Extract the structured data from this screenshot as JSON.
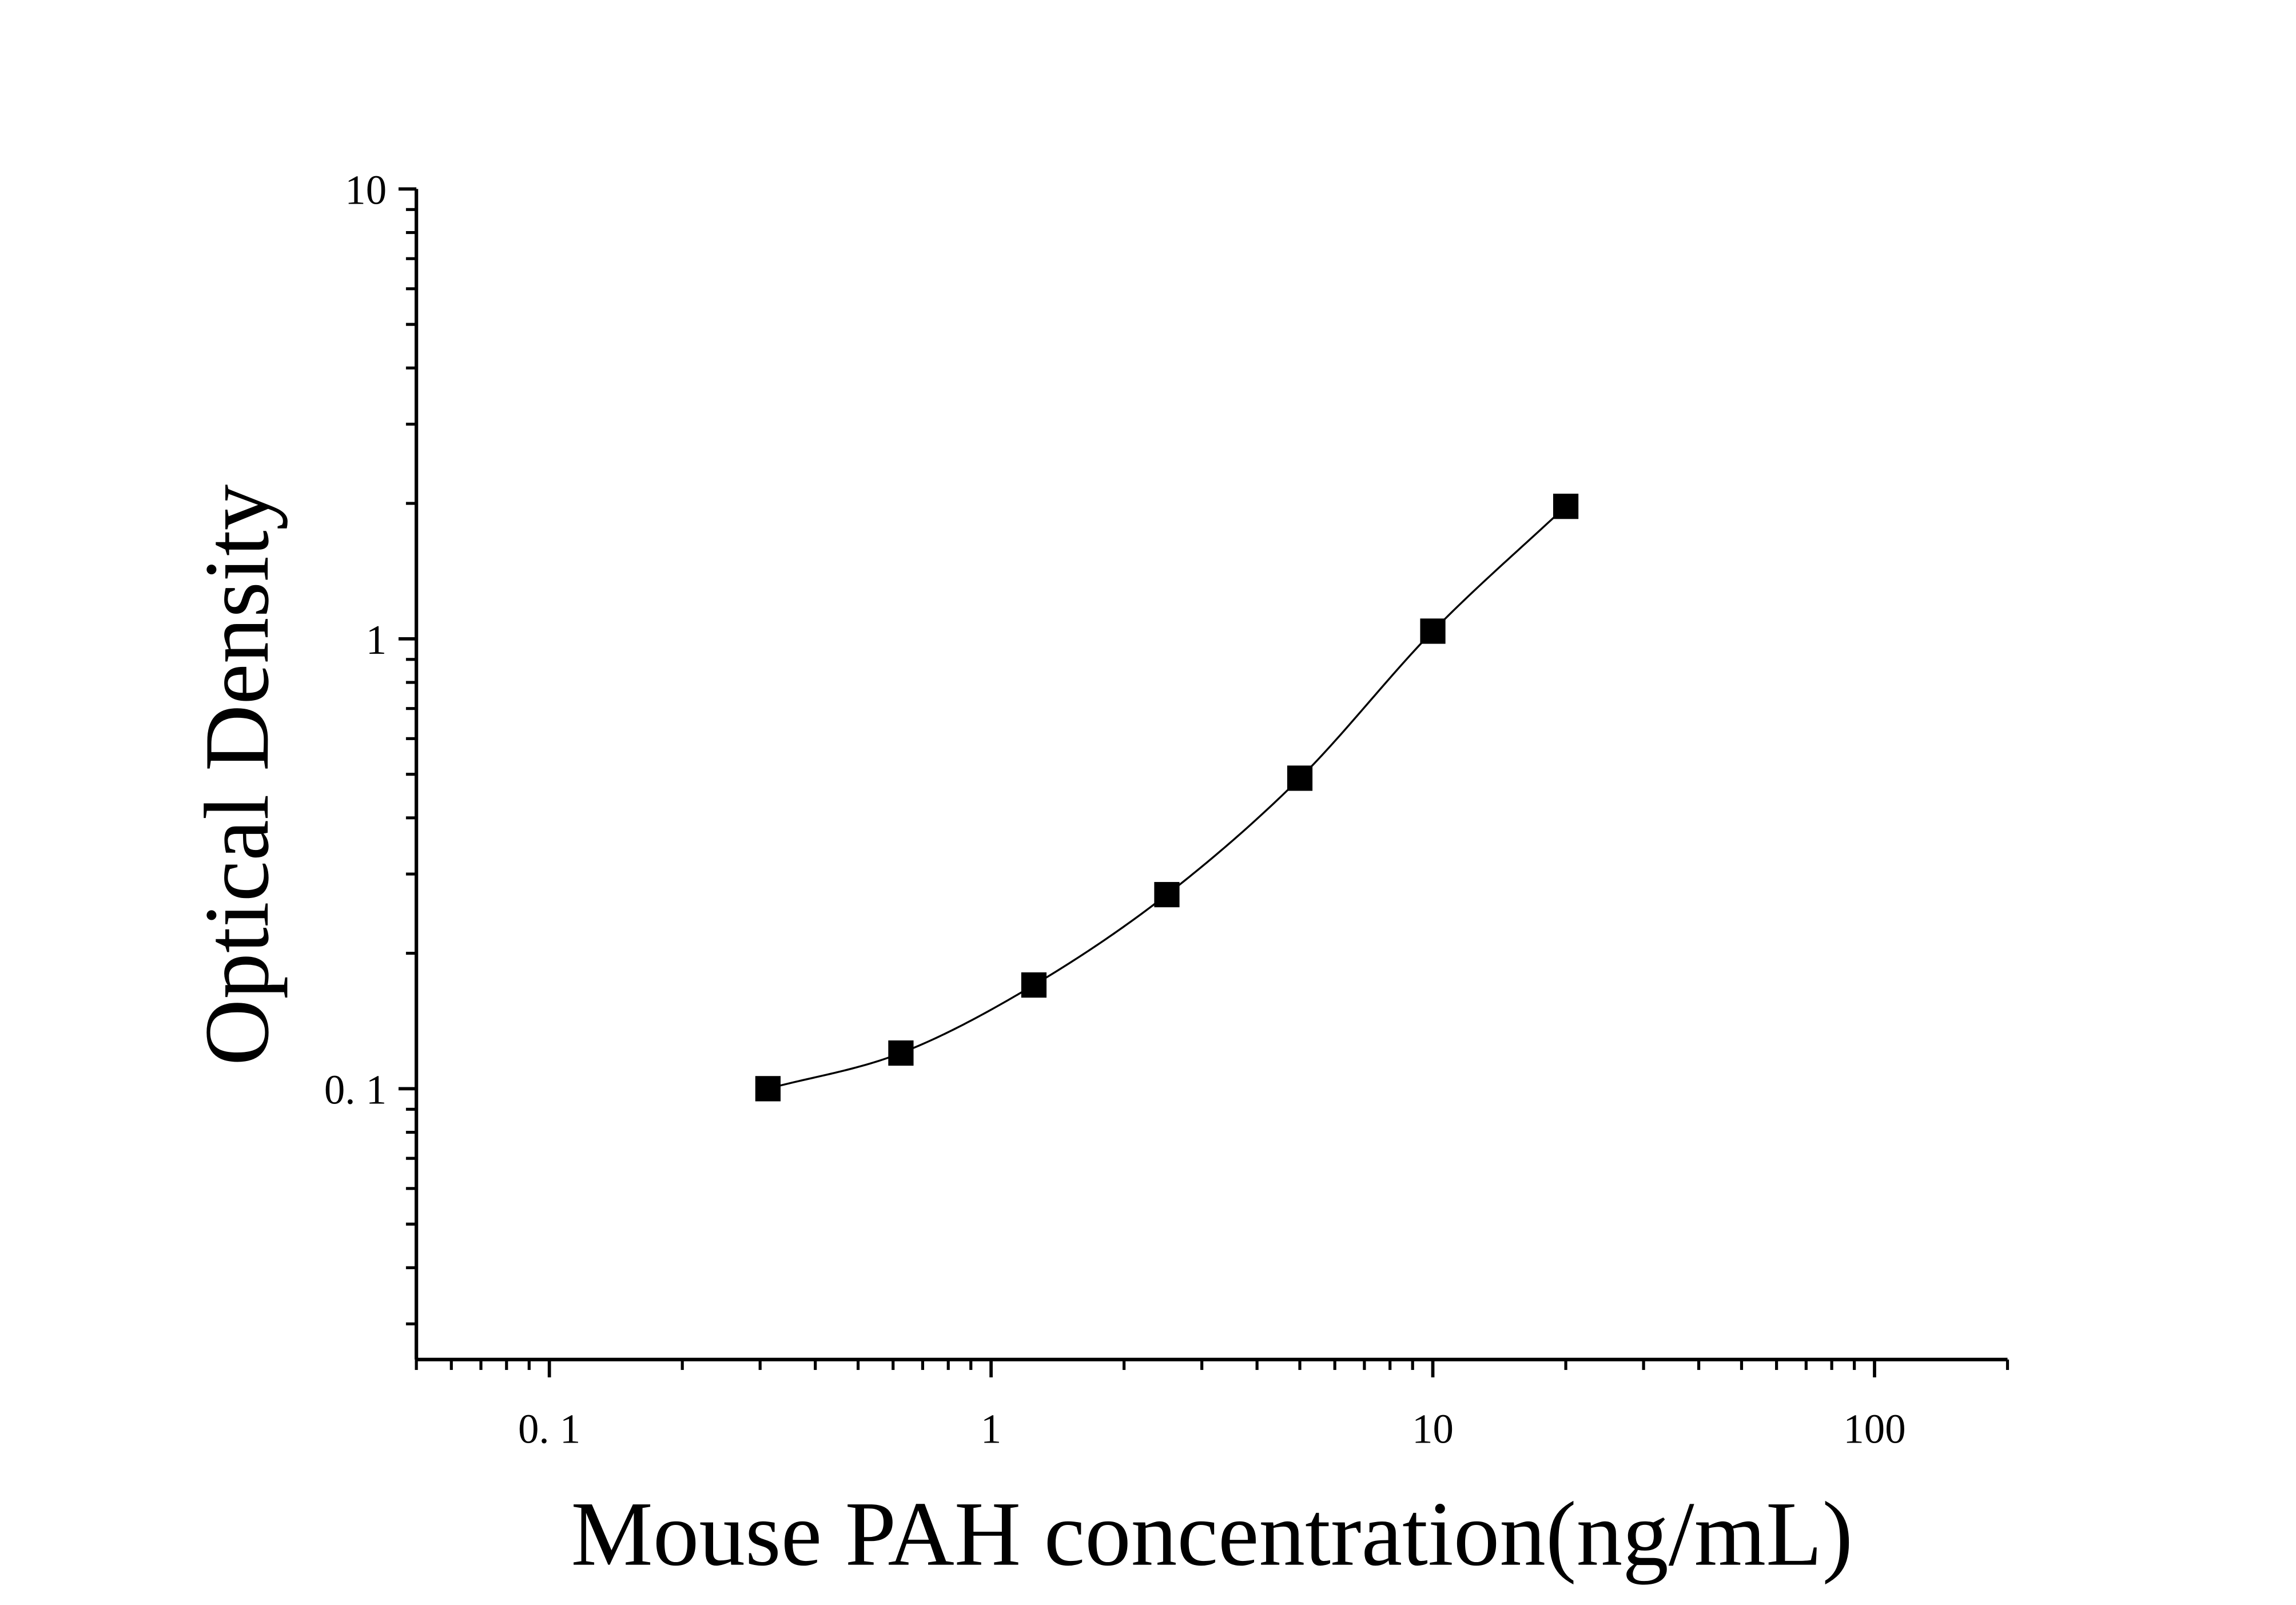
{
  "chart_data": {
    "type": "scatter",
    "title": "",
    "xlabel": "Mouse PAH concentration(ng/mL)",
    "ylabel": "Optical Density",
    "x_scale": "log",
    "y_scale": "log",
    "xlim": [
      0.05,
      200
    ],
    "ylim": [
      0.025,
      10
    ],
    "x_ticks": [
      {
        "value": 0.1,
        "label": "0. 1"
      },
      {
        "value": 1,
        "label": "1"
      },
      {
        "value": 10,
        "label": "10"
      },
      {
        "value": 100,
        "label": "100"
      }
    ],
    "y_ticks": [
      {
        "value": 0.1,
        "label": "0. 1"
      },
      {
        "value": 1,
        "label": "1"
      },
      {
        "value": 10,
        "label": "10"
      }
    ],
    "grid": false,
    "legend": "none",
    "marker": "square",
    "colors": {
      "marker": "#000000",
      "curve": "#000000",
      "axis": "#000000"
    },
    "series": [
      {
        "x": [
          0.3125,
          0.625,
          1.25,
          2.5,
          5,
          10,
          20
        ],
        "y": [
          0.1,
          0.12,
          0.17,
          0.27,
          0.49,
          1.04,
          1.97
        ]
      }
    ],
    "fit_curve": true
  }
}
